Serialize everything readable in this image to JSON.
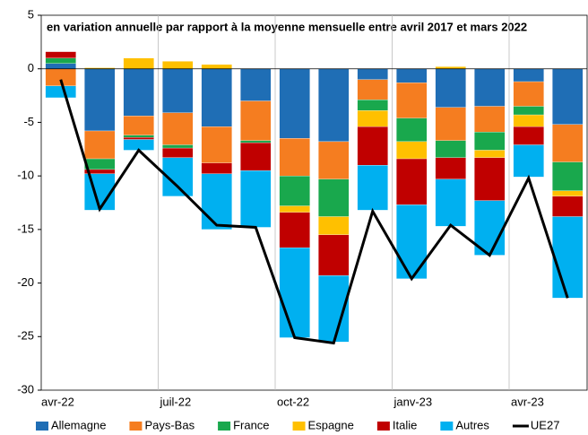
{
  "chart_data": {
    "type": "bar",
    "stacked": true,
    "title": "en variation annuelle par rapport à la moyenne mensuelle entre avril 2017 et mars 2022",
    "categories": [
      "avr-22",
      null,
      null,
      "juil-22",
      null,
      null,
      "oct-22",
      null,
      null,
      "janv-23",
      null,
      null,
      "avr-23",
      null
    ],
    "series": [
      {
        "name": "Allemagne",
        "color": "#1f6eb5",
        "values": [
          0.5,
          -5.8,
          -4.4,
          -4.1,
          -5.4,
          -3.0,
          -6.5,
          -6.8,
          -1.0,
          -1.3,
          -3.6,
          -3.5,
          -1.2,
          -5.2
        ]
      },
      {
        "name": "Pays-Bas",
        "color": "#f57d20",
        "values": [
          -1.6,
          -2.6,
          -1.8,
          -3.0,
          -3.4,
          -3.7,
          -3.5,
          -3.5,
          -1.9,
          -3.3,
          -3.1,
          -2.4,
          -2.3,
          -3.5
        ]
      },
      {
        "name": "France",
        "color": "#19a84d",
        "values": [
          0.5,
          -1.0,
          -0.2,
          -0.3,
          0,
          -0.2,
          -2.8,
          -3.5,
          -1.0,
          -2.2,
          -1.6,
          -1.7,
          -0.8,
          -2.7
        ]
      },
      {
        "name": "Espagne",
        "color": "#ffc000",
        "values": [
          0,
          0.1,
          1.0,
          0.7,
          0.4,
          0,
          -0.6,
          -1.7,
          -1.5,
          -1.6,
          0.2,
          -0.7,
          -1.1,
          -0.5
        ]
      },
      {
        "name": "Italie",
        "color": "#c00000",
        "values": [
          0.6,
          -0.4,
          -0.2,
          -0.9,
          -1.0,
          -2.6,
          -3.3,
          -3.8,
          -3.6,
          -4.3,
          -2.0,
          -4.0,
          -1.7,
          -1.9
        ]
      },
      {
        "name": "Autres",
        "color": "#00b0f0",
        "values": [
          -1.1,
          -3.4,
          -1.0,
          -3.6,
          -5.2,
          -5.3,
          -8.4,
          -6.2,
          -4.2,
          -6.9,
          -4.4,
          -5.1,
          -3.0,
          -7.6
        ]
      },
      {
        "name": "UE27",
        "type": "line",
        "color": "#000000",
        "values": [
          -1.0,
          -13.1,
          -7.6,
          -11.0,
          -14.6,
          -14.8,
          -25.1,
          -25.6,
          -13.3,
          -19.6,
          -14.6,
          -17.4,
          -10.2,
          -21.4
        ]
      }
    ],
    "ylim": [
      -30,
      5
    ],
    "yticks": [
      -30,
      -25,
      -20,
      -15,
      -10,
      -5,
      0,
      5
    ],
    "grid": "x",
    "legend": "bottom"
  }
}
